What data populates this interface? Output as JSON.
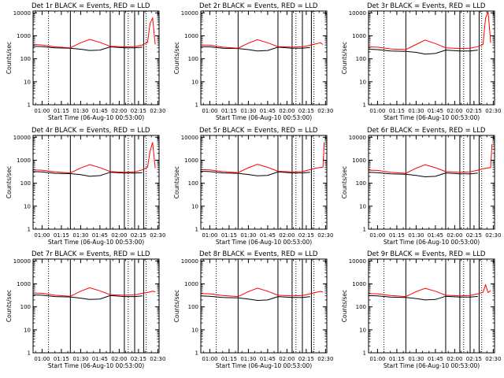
{
  "figure": {
    "ylabel": "Counts/sec",
    "xlabel": "Start Time (06-Aug-10 00:53:00)",
    "x_tick_labels": [
      "01:00",
      "01:15",
      "01:30",
      "01:45",
      "02:00",
      "02:15",
      "02:30"
    ],
    "y_tick_labels": [
      "1",
      "10",
      "100",
      "1000",
      "10000"
    ],
    "colors": {
      "events": "#000000",
      "lld": "#ff0000"
    }
  },
  "chart_data": [
    {
      "type": "line",
      "title": "Det 1r BLACK = Events, RED = LLD",
      "xlim": [
        "00:53",
        "02:31"
      ],
      "ylim": [
        1,
        12000
      ],
      "yscale": "log",
      "dotted_vlines": [
        "01:05",
        "02:07",
        "02:21"
      ],
      "solid_vlines": [
        "01:22",
        "01:53",
        "02:04",
        "02:12",
        "02:19"
      ],
      "series": [
        {
          "name": "BLACK = Events",
          "times": [
            "00:53",
            "01:00",
            "01:10",
            "01:22",
            "01:30",
            "01:37",
            "01:45",
            "01:53",
            "02:04",
            "02:12",
            "02:18"
          ],
          "values": [
            350,
            340,
            300,
            290,
            260,
            230,
            240,
            330,
            300,
            300,
            320
          ]
        },
        {
          "name": "RED = LLD",
          "times": [
            "00:53",
            "01:00",
            "01:10",
            "01:22",
            "01:30",
            "01:37",
            "01:45",
            "01:53",
            "02:04",
            "02:12",
            "02:18",
            "02:22",
            "02:24",
            "02:26",
            "02:28"
          ],
          "values": [
            420,
            400,
            330,
            300,
            500,
            700,
            520,
            350,
            330,
            340,
            400,
            520,
            3500,
            6000,
            420
          ]
        }
      ]
    },
    {
      "type": "line",
      "title": "Det 2r BLACK = Events, RED = LLD",
      "xlim": [
        "00:53",
        "02:31"
      ],
      "ylim": [
        1,
        12000
      ],
      "yscale": "log",
      "dotted_vlines": [
        "01:05",
        "02:07",
        "02:21"
      ],
      "solid_vlines": [
        "01:22",
        "01:53",
        "02:04",
        "02:12",
        "02:19"
      ],
      "series": [
        {
          "name": "BLACK = Events",
          "times": [
            "00:53",
            "01:00",
            "01:10",
            "01:22",
            "01:30",
            "01:37",
            "01:45",
            "01:53",
            "02:04",
            "02:12",
            "02:18"
          ],
          "values": [
            340,
            330,
            290,
            280,
            250,
            220,
            230,
            320,
            290,
            290,
            310
          ]
        },
        {
          "name": "RED = LLD",
          "times": [
            "00:53",
            "01:00",
            "01:10",
            "01:22",
            "01:30",
            "01:37",
            "01:45",
            "01:53",
            "02:04",
            "02:12",
            "02:18",
            "02:22",
            "02:26",
            "02:28"
          ],
          "values": [
            400,
            390,
            320,
            290,
            480,
            680,
            500,
            340,
            320,
            330,
            390,
            440,
            500,
            420
          ]
        }
      ]
    },
    {
      "type": "line",
      "title": "Det 3r BLACK = Events, RED = LLD",
      "xlim": [
        "00:53",
        "02:31"
      ],
      "ylim": [
        1,
        12000
      ],
      "yscale": "log",
      "dotted_vlines": [
        "01:05",
        "02:07",
        "02:21"
      ],
      "solid_vlines": [
        "01:22",
        "01:53",
        "02:04",
        "02:12",
        "02:19"
      ],
      "series": [
        {
          "name": "BLACK = Events",
          "times": [
            "00:53",
            "01:00",
            "01:10",
            "01:22",
            "01:30",
            "01:37",
            "01:45",
            "01:53",
            "02:04",
            "02:12",
            "02:18"
          ],
          "values": [
            260,
            250,
            220,
            210,
            190,
            160,
            170,
            240,
            220,
            220,
            240
          ]
        },
        {
          "name": "RED = LLD",
          "times": [
            "00:53",
            "01:00",
            "01:10",
            "01:22",
            "01:30",
            "01:37",
            "01:45",
            "01:53",
            "02:04",
            "02:12",
            "02:18",
            "02:22",
            "02:24",
            "02:26",
            "02:28"
          ],
          "values": [
            330,
            320,
            270,
            250,
            420,
            650,
            460,
            300,
            280,
            290,
            340,
            420,
            6000,
            11000,
            500
          ]
        }
      ]
    },
    {
      "type": "line",
      "title": "Det 4r BLACK = Events, RED = LLD",
      "xlim": [
        "00:53",
        "02:31"
      ],
      "ylim": [
        1,
        12000
      ],
      "yscale": "log",
      "dotted_vlines": [
        "01:05",
        "02:07",
        "02:21"
      ],
      "solid_vlines": [
        "01:22",
        "01:53",
        "02:04",
        "02:12",
        "02:19"
      ],
      "series": [
        {
          "name": "BLACK = Events",
          "times": [
            "00:53",
            "01:00",
            "01:10",
            "01:22",
            "01:30",
            "01:37",
            "01:45",
            "01:53",
            "02:04",
            "02:12",
            "02:18"
          ],
          "values": [
            320,
            310,
            270,
            260,
            235,
            200,
            215,
            300,
            275,
            275,
            290
          ]
        },
        {
          "name": "RED = LLD",
          "times": [
            "00:53",
            "01:00",
            "01:10",
            "01:22",
            "01:30",
            "01:37",
            "01:45",
            "01:53",
            "02:04",
            "02:12",
            "02:18",
            "02:22",
            "02:24",
            "02:26",
            "02:28"
          ],
          "values": [
            380,
            370,
            310,
            280,
            460,
            640,
            480,
            320,
            300,
            310,
            380,
            500,
            2500,
            6000,
            450
          ]
        }
      ]
    },
    {
      "type": "line",
      "title": "Det 5r BLACK = Events, RED = LLD",
      "xlim": [
        "00:53",
        "02:31"
      ],
      "ylim": [
        1,
        12000
      ],
      "yscale": "log",
      "dotted_vlines": [
        "01:05",
        "02:07",
        "02:21"
      ],
      "solid_vlines": [
        "01:22",
        "01:53",
        "02:04",
        "02:12",
        "02:19"
      ],
      "series": [
        {
          "name": "BLACK = Events",
          "times": [
            "00:53",
            "01:00",
            "01:10",
            "01:22",
            "01:30",
            "01:37",
            "01:45",
            "01:53",
            "02:04",
            "02:12",
            "02:18"
          ],
          "values": [
            330,
            320,
            280,
            270,
            240,
            210,
            220,
            310,
            280,
            280,
            300
          ]
        },
        {
          "name": "RED = LLD",
          "times": [
            "00:53",
            "01:00",
            "01:10",
            "01:22",
            "01:30",
            "01:37",
            "01:45",
            "01:53",
            "02:04",
            "02:12",
            "02:18",
            "02:22",
            "02:28",
            "02:29"
          ],
          "values": [
            390,
            380,
            320,
            290,
            470,
            660,
            490,
            330,
            310,
            320,
            390,
            450,
            500,
            6000
          ]
        }
      ]
    },
    {
      "type": "line",
      "title": "Det 6r BLACK = Events, RED = LLD",
      "xlim": [
        "00:53",
        "02:31"
      ],
      "ylim": [
        1,
        12000
      ],
      "yscale": "log",
      "dotted_vlines": [
        "01:05",
        "02:07",
        "02:21"
      ],
      "solid_vlines": [
        "01:22",
        "01:53",
        "02:04",
        "02:12",
        "02:19"
      ],
      "series": [
        {
          "name": "BLACK = Events",
          "times": [
            "00:53",
            "01:00",
            "01:10",
            "01:22",
            "01:30",
            "01:37",
            "01:45",
            "01:53",
            "02:04",
            "02:12",
            "02:18"
          ],
          "values": [
            300,
            290,
            255,
            245,
            220,
            190,
            200,
            280,
            255,
            255,
            275
          ]
        },
        {
          "name": "RED = LLD",
          "times": [
            "00:53",
            "01:00",
            "01:10",
            "01:22",
            "01:30",
            "01:37",
            "01:45",
            "01:53",
            "02:04",
            "02:12",
            "02:18",
            "02:22",
            "02:28",
            "02:29"
          ],
          "values": [
            370,
            360,
            300,
            270,
            450,
            640,
            470,
            320,
            300,
            310,
            370,
            430,
            480,
            5000
          ]
        }
      ]
    },
    {
      "type": "line",
      "title": "Det 7r BLACK = Events, RED = LLD",
      "xlim": [
        "00:53",
        "02:31"
      ],
      "ylim": [
        1,
        12000
      ],
      "yscale": "log",
      "dotted_vlines": [
        "01:05",
        "02:07",
        "02:21"
      ],
      "solid_vlines": [
        "01:22",
        "01:53",
        "02:04",
        "02:12",
        "02:19"
      ],
      "series": [
        {
          "name": "BLACK = Events",
          "times": [
            "00:53",
            "01:00",
            "01:10",
            "01:22",
            "01:30",
            "01:37",
            "01:45",
            "01:53",
            "02:04",
            "02:12",
            "02:18"
          ],
          "values": [
            330,
            320,
            280,
            270,
            240,
            210,
            220,
            310,
            280,
            280,
            300
          ]
        },
        {
          "name": "RED = LLD",
          "times": [
            "00:53",
            "01:00",
            "01:10",
            "01:22",
            "01:30",
            "01:37",
            "01:45",
            "01:53",
            "02:04",
            "02:12",
            "02:18",
            "02:22",
            "02:26",
            "02:28"
          ],
          "values": [
            400,
            390,
            320,
            290,
            480,
            680,
            500,
            340,
            320,
            330,
            390,
            420,
            480,
            450
          ]
        }
      ]
    },
    {
      "type": "line",
      "title": "Det 8r BLACK = Events, RED = LLD",
      "xlim": [
        "00:53",
        "02:31"
      ],
      "ylim": [
        1,
        12000
      ],
      "yscale": "log",
      "dotted_vlines": [
        "01:05",
        "02:07",
        "02:21"
      ],
      "solid_vlines": [
        "01:22",
        "01:53",
        "02:04",
        "02:12",
        "02:19"
      ],
      "series": [
        {
          "name": "BLACK = Events",
          "times": [
            "00:53",
            "01:00",
            "01:10",
            "01:22",
            "01:30",
            "01:37",
            "01:45",
            "01:53",
            "02:04",
            "02:12",
            "02:18"
          ],
          "values": [
            300,
            290,
            255,
            245,
            220,
            190,
            200,
            280,
            255,
            255,
            275
          ]
        },
        {
          "name": "RED = LLD",
          "times": [
            "00:53",
            "01:00",
            "01:10",
            "01:22",
            "01:30",
            "01:37",
            "01:45",
            "01:53",
            "02:04",
            "02:12",
            "02:18",
            "02:22",
            "02:26",
            "02:28"
          ],
          "values": [
            380,
            370,
            310,
            280,
            460,
            650,
            480,
            320,
            300,
            310,
            370,
            420,
            470,
            440
          ]
        }
      ]
    },
    {
      "type": "line",
      "title": "Det 9r BLACK = Events, RED = LLD",
      "xlim": [
        "00:53",
        "02:31"
      ],
      "ylim": [
        1,
        12000
      ],
      "yscale": "log",
      "dotted_vlines": [
        "01:05",
        "02:07",
        "02:21"
      ],
      "solid_vlines": [
        "01:22",
        "01:53",
        "02:04",
        "02:12",
        "02:19"
      ],
      "series": [
        {
          "name": "BLACK = Events",
          "times": [
            "00:53",
            "01:00",
            "01:10",
            "01:22",
            "01:30",
            "01:37",
            "01:45",
            "01:53",
            "02:04",
            "02:12",
            "02:18"
          ],
          "values": [
            310,
            300,
            265,
            255,
            230,
            200,
            210,
            290,
            265,
            265,
            285
          ]
        },
        {
          "name": "RED = LLD",
          "times": [
            "00:53",
            "01:00",
            "01:10",
            "01:22",
            "01:30",
            "01:37",
            "01:45",
            "01:53",
            "02:04",
            "02:12",
            "02:18",
            "02:22",
            "02:24",
            "02:26",
            "02:28"
          ],
          "values": [
            380,
            370,
            310,
            280,
            460,
            640,
            480,
            320,
            300,
            310,
            370,
            430,
            900,
            420,
            500
          ]
        }
      ]
    }
  ]
}
